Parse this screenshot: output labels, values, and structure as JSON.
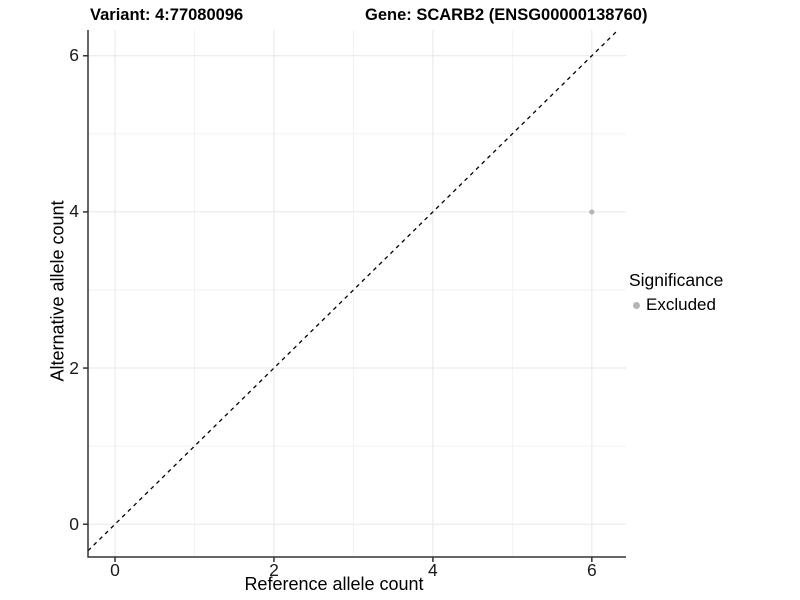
{
  "titles": {
    "left": "Variant: 4:77080096",
    "right": "Gene: SCARB2 (ENSG00000138760)"
  },
  "chart_data": {
    "type": "scatter",
    "title_left": "Variant: 4:77080096",
    "title_right": "Gene: SCARB2 (ENSG00000138760)",
    "xlabel": "Reference allele count",
    "ylabel": "Alternative allele count",
    "xlim": [
      -0.34,
      6.43
    ],
    "ylim": [
      -0.42,
      6.33
    ],
    "x_ticks": [
      0,
      2,
      4,
      6
    ],
    "y_ticks": [
      0,
      2,
      4,
      6
    ],
    "x_minor_ticks": [
      1,
      3,
      5
    ],
    "y_minor_ticks": [
      1,
      3,
      5
    ],
    "grid": "major and minor, light gray on white",
    "points": [
      {
        "x": 6,
        "y": 4,
        "series": "Excluded"
      }
    ],
    "reference_line": {
      "type": "abline",
      "slope": 1,
      "intercept": 0,
      "style": "dashed",
      "color": "#000000"
    },
    "legend": {
      "title": "Significance",
      "position": "right",
      "entries": [
        {
          "label": "Excluded",
          "color": "#b5b5b5"
        }
      ]
    },
    "colors": {
      "point": "#b5b5b5",
      "grid_major": "#e7e7e7",
      "grid_minor": "#f2f2f2",
      "axis_line": "#333333",
      "tick_mark": "#333333",
      "reference_line": "#000000",
      "background": "#ffffff"
    }
  }
}
